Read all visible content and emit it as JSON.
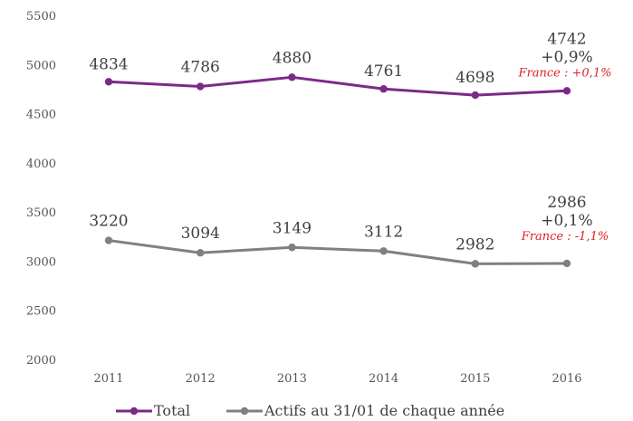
{
  "chart_data": {
    "type": "line",
    "categories": [
      "2011",
      "2012",
      "2013",
      "2014",
      "2015",
      "2016"
    ],
    "ylim": [
      2000,
      5500
    ],
    "yticks": [
      2000,
      2500,
      3000,
      3500,
      4000,
      4500,
      5000,
      5500
    ],
    "grid": false,
    "legend_position": "bottom",
    "series": [
      {
        "name": "Total",
        "color": "#7b2a86",
        "values": [
          4834,
          4786,
          4880,
          4761,
          4698,
          4742
        ],
        "labels": [
          "4834",
          "4786",
          "4880",
          "4761",
          "4698",
          "4742"
        ],
        "change": "+0,9%",
        "france_note": "France : +0,1%"
      },
      {
        "name": "Actifs au 31/01 de chaque année",
        "color": "#808080",
        "values": [
          3220,
          3094,
          3149,
          3112,
          2982,
          2986
        ],
        "labels": [
          "3220",
          "3094",
          "3149",
          "3112",
          "2982",
          "2986"
        ],
        "change": "+0,1%",
        "france_note": "France : -1,1%"
      }
    ]
  }
}
